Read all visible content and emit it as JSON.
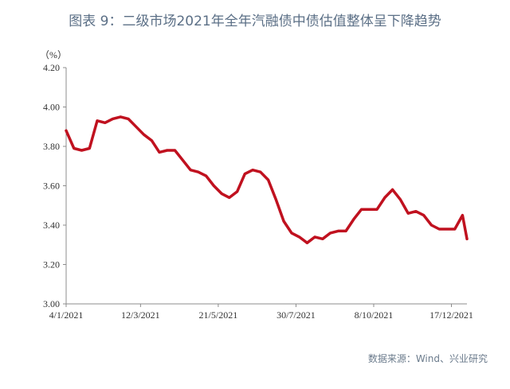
{
  "title": "图表 9：二级市场2021年全年汽融债中债估值整体呈下降趋势",
  "source": "数据来源：Wind、兴业研究",
  "chart_data": {
    "type": "line",
    "ylabel": "（%）",
    "ylim": [
      3.0,
      4.2
    ],
    "y_ticks": [
      "4.20",
      "4.00",
      "3.80",
      "3.60",
      "3.40",
      "3.20",
      "3.00"
    ],
    "x_ticks": [
      "4/1/2021",
      "12/3/2021",
      "21/5/2021",
      "30/7/2021",
      "8/10/2021",
      "17/12/2021"
    ],
    "x_range": [
      "2021-01-04",
      "2021-12-31"
    ],
    "grid": false,
    "color": "#c0111f",
    "series": [
      {
        "x": [
          "2021-01-04",
          "2021-01-11",
          "2021-01-18",
          "2021-01-25",
          "2021-02-01",
          "2021-02-08",
          "2021-02-15",
          "2021-02-22",
          "2021-03-01",
          "2021-03-08",
          "2021-03-15",
          "2021-03-22",
          "2021-03-29",
          "2021-04-05",
          "2021-04-12",
          "2021-04-19",
          "2021-04-26",
          "2021-05-03",
          "2021-05-10",
          "2021-05-17",
          "2021-05-24",
          "2021-05-31",
          "2021-06-07",
          "2021-06-14",
          "2021-06-21",
          "2021-06-28",
          "2021-07-05",
          "2021-07-12",
          "2021-07-19",
          "2021-07-26",
          "2021-08-02",
          "2021-08-09",
          "2021-08-16",
          "2021-08-23",
          "2021-08-30",
          "2021-09-06",
          "2021-09-13",
          "2021-09-20",
          "2021-09-27",
          "2021-10-04",
          "2021-10-11",
          "2021-10-18",
          "2021-10-25",
          "2021-11-01",
          "2021-11-08",
          "2021-11-15",
          "2021-11-22",
          "2021-11-29",
          "2021-12-06",
          "2021-12-13",
          "2021-12-20",
          "2021-12-27",
          "2021-12-31"
        ],
        "values": [
          3.88,
          3.79,
          3.78,
          3.79,
          3.93,
          3.92,
          3.94,
          3.95,
          3.94,
          3.9,
          3.86,
          3.83,
          3.77,
          3.78,
          3.78,
          3.73,
          3.68,
          3.67,
          3.65,
          3.6,
          3.56,
          3.54,
          3.57,
          3.66,
          3.68,
          3.67,
          3.63,
          3.53,
          3.42,
          3.36,
          3.34,
          3.31,
          3.34,
          3.33,
          3.36,
          3.37,
          3.37,
          3.43,
          3.48,
          3.48,
          3.48,
          3.54,
          3.58,
          3.53,
          3.46,
          3.47,
          3.45,
          3.4,
          3.38,
          3.38,
          3.38,
          3.45,
          3.33
        ]
      }
    ]
  }
}
